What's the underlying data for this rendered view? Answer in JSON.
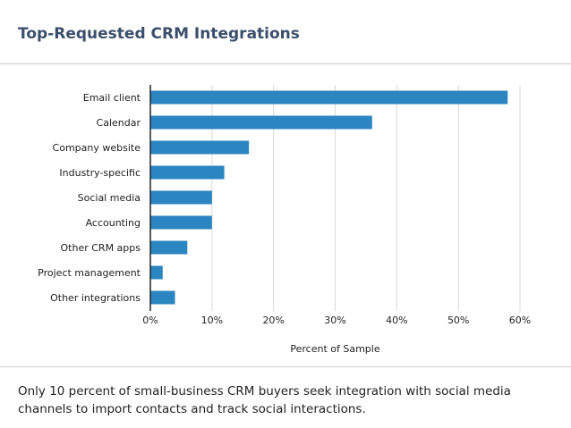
{
  "page": {
    "title": "Top-Requested CRM Integrations",
    "caption": "Only 10 percent of small-business CRM buyers seek integration with social media channels to import contacts and track social interactions."
  },
  "colors": {
    "bar": "#2a85c1",
    "grid": "#d9d9d9",
    "axis": "#222222",
    "text": "#222222",
    "title": "#3b4f6b"
  },
  "chart_data": {
    "type": "bar",
    "orientation": "horizontal",
    "title": "Top-Requested CRM Integrations",
    "categories": [
      "Email client",
      "Calendar",
      "Company website",
      "Industry-specific",
      "Social media",
      "Accounting",
      "Other CRM apps",
      "Project management",
      "Other integrations"
    ],
    "values": [
      58,
      36,
      16,
      12,
      10,
      10,
      6,
      2,
      4
    ],
    "xlabel": "Percent of Sample",
    "ylabel": "",
    "xlim": [
      0,
      60
    ],
    "xticks": [
      0,
      10,
      20,
      30,
      40,
      50,
      60
    ],
    "xtick_labels": [
      "0%",
      "10%",
      "20%",
      "30%",
      "40%",
      "50%",
      "60%"
    ],
    "grid": true,
    "legend": "none"
  }
}
